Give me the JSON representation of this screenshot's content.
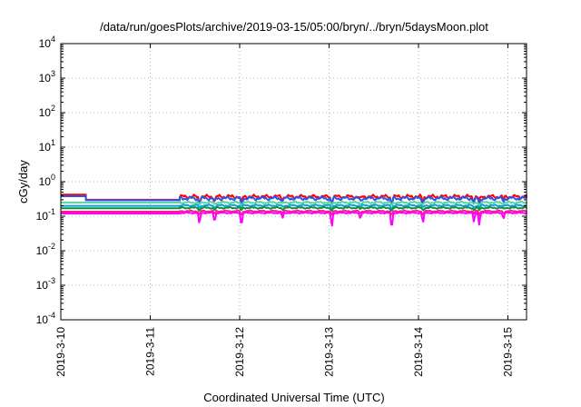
{
  "chart_data": {
    "type": "line",
    "title": "/data/run/goesPlots/archive/2019-03-15/05:00/bryn/../bryn/5daysMoon.plot",
    "xlabel": "Coordinated Universal Time (UTC)",
    "ylabel": "cGy/day",
    "yscale": "log",
    "ylim": [
      0.0001,
      10000
    ],
    "xlim": [
      "2019-03-10",
      "2019-03-15 05:00"
    ],
    "grid": true,
    "y_ticks": [
      {
        "base": "10",
        "exp": "-4"
      },
      {
        "base": "10",
        "exp": "-3"
      },
      {
        "base": "10",
        "exp": "-2"
      },
      {
        "base": "10",
        "exp": "-1"
      },
      {
        "base": "10",
        "exp": "0"
      },
      {
        "base": "10",
        "exp": "1"
      },
      {
        "base": "10",
        "exp": "2"
      },
      {
        "base": "10",
        "exp": "3"
      },
      {
        "base": "10",
        "exp": "4"
      }
    ],
    "x_ticks": [
      "2019-3-10",
      "2019-3-11",
      "2019-3-12",
      "2019-3-13",
      "2019-3-14",
      "2019-3-15"
    ],
    "gap": {
      "start_day": 0.28,
      "end_day": 1.33
    },
    "dips": [
      {
        "day": 1.55,
        "depth": 0.55
      },
      {
        "day": 1.72,
        "depth": 0.45
      },
      {
        "day": 2.02,
        "depth": 0.6
      },
      {
        "day": 2.48,
        "depth": 0.3
      },
      {
        "day": 3.03,
        "depth": 0.65
      },
      {
        "day": 3.35,
        "depth": 0.3
      },
      {
        "day": 3.7,
        "depth": 0.7
      },
      {
        "day": 4.05,
        "depth": 0.5
      },
      {
        "day": 4.62,
        "depth": 0.45
      },
      {
        "day": 4.68,
        "depth": 0.55
      },
      {
        "day": 4.95,
        "depth": 0.3
      }
    ],
    "series": [
      {
        "color": "#ff0000",
        "pre": 0.42,
        "flat": 0.3,
        "base": 0.37,
        "noise": 0.15,
        "dip_scale": 0.6
      },
      {
        "color": "#2a57e8",
        "pre": 0.38,
        "flat": 0.29,
        "base": 0.33,
        "noise": 0.15,
        "dip_scale": 0.6
      },
      {
        "color": "#5fd0a0",
        "pre": 0.25,
        "flat": 0.25,
        "base": 0.25,
        "noise": 0.08,
        "dip_scale": 0.3
      },
      {
        "color": "#00a8d8",
        "pre": 0.2,
        "flat": 0.2,
        "base": 0.205,
        "noise": 0.07,
        "dip_scale": 0.3
      },
      {
        "color": "#1a8c3a",
        "pre": 0.17,
        "flat": 0.17,
        "base": 0.175,
        "noise": 0.07,
        "dip_scale": 0.3
      },
      {
        "color": "#ff1a8c",
        "pre": 0.135,
        "flat": 0.135,
        "base": 0.14,
        "noise": 0.06,
        "dip_scale": 0.4
      },
      {
        "color": "#ff00ff",
        "pre": 0.12,
        "flat": 0.12,
        "base": 0.125,
        "noise": 0.05,
        "dip_scale": 1.0
      }
    ]
  }
}
